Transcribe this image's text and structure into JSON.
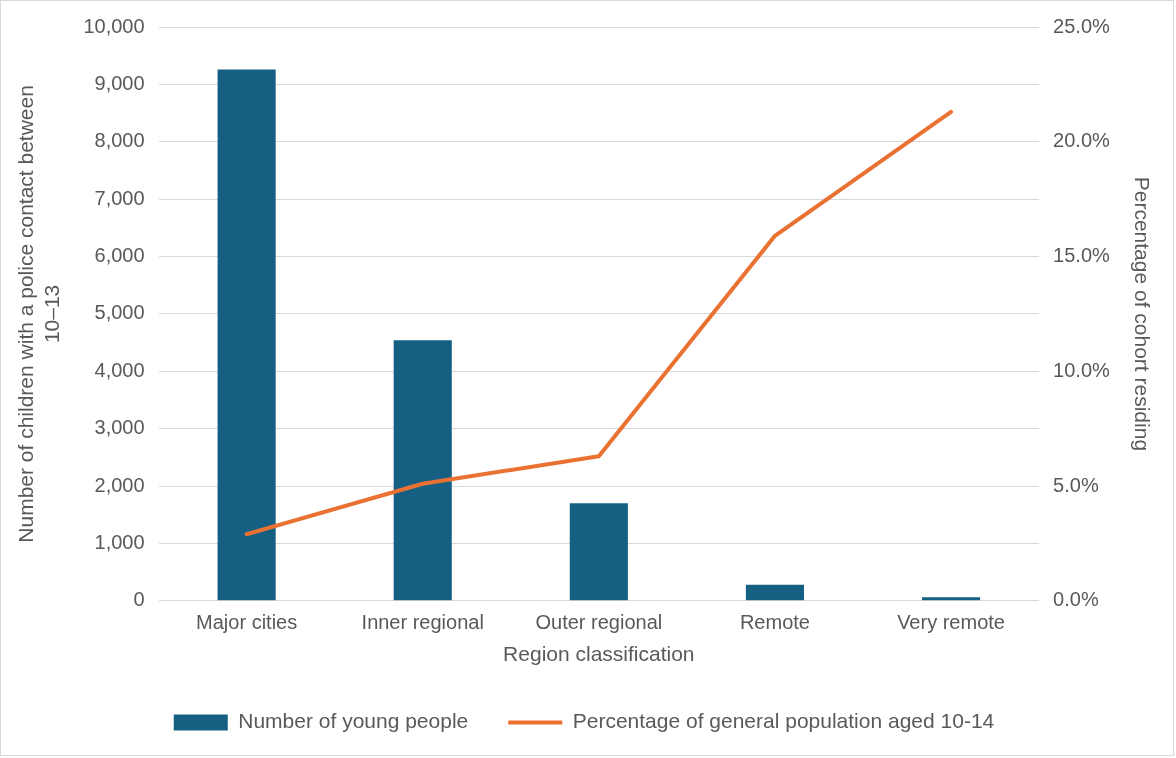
{
  "chart_data": {
    "type": "bar",
    "xlabel": "Region classification",
    "ylabel": "Number of children with a police contact between 10–13",
    "y2label": "Percentage of cohort residing",
    "categories": [
      "Major cities",
      "Inner regional",
      "Outer regional",
      "Remote",
      "Very remote"
    ],
    "series": [
      {
        "name": "Number of young people",
        "color": "#156082",
        "values": [
          9260,
          4540,
          1700,
          280,
          60
        ]
      },
      {
        "name": "Percentage of general population aged 10-14",
        "type": "line",
        "axis": "y2",
        "color": "#e97132",
        "values": [
          2.9,
          5.1,
          6.3,
          15.9,
          21.3
        ]
      }
    ],
    "ylim": [
      0,
      10000
    ],
    "yticks": [
      {
        "value": 0,
        "label": "0"
      },
      {
        "value": 1000,
        "label": "1,000"
      },
      {
        "value": 2000,
        "label": "2,000"
      },
      {
        "value": 3000,
        "label": "3,000"
      },
      {
        "value": 4000,
        "label": "4,000"
      },
      {
        "value": 5000,
        "label": "5,000"
      },
      {
        "value": 6000,
        "label": "6,000"
      },
      {
        "value": 7000,
        "label": "7,000"
      },
      {
        "value": 8000,
        "label": "8,000"
      },
      {
        "value": 9000,
        "label": "9,000"
      },
      {
        "value": 10000,
        "label": "10,000"
      }
    ],
    "y2lim": [
      0,
      25
    ],
    "y2ticks": [
      {
        "value": 0,
        "label": "0.0%"
      },
      {
        "value": 5,
        "label": "5.0%"
      },
      {
        "value": 10,
        "label": "10.0%"
      },
      {
        "value": 15,
        "label": "15.0%"
      },
      {
        "value": 20,
        "label": "20.0%"
      },
      {
        "value": 25,
        "label": "25.0%"
      }
    ],
    "grid": "y",
    "legend": "bottom",
    "marker": "none",
    "line_style": "solid"
  }
}
